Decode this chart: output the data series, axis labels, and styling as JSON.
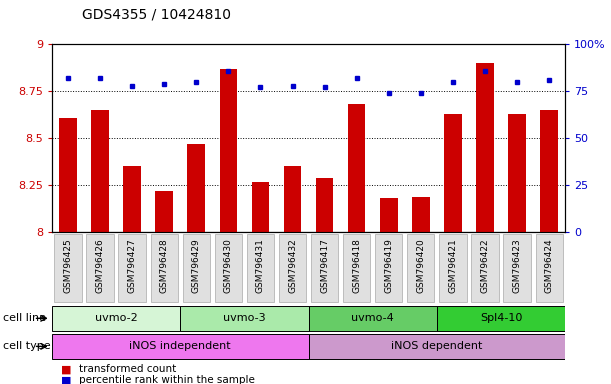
{
  "title": "GDS4355 / 10424810",
  "samples": [
    "GSM796425",
    "GSM796426",
    "GSM796427",
    "GSM796428",
    "GSM796429",
    "GSM796430",
    "GSM796431",
    "GSM796432",
    "GSM796417",
    "GSM796418",
    "GSM796419",
    "GSM796420",
    "GSM796421",
    "GSM796422",
    "GSM796423",
    "GSM796424"
  ],
  "transformed_count": [
    8.61,
    8.65,
    8.35,
    8.22,
    8.47,
    8.87,
    8.27,
    8.35,
    8.29,
    8.68,
    8.18,
    8.19,
    8.63,
    8.9,
    8.63,
    8.65
  ],
  "percentile_rank": [
    82,
    82,
    78,
    79,
    80,
    86,
    77,
    78,
    77,
    82,
    74,
    74,
    80,
    86,
    80,
    81
  ],
  "bar_color": "#cc0000",
  "dot_color": "#0000cc",
  "ylim_left": [
    8.0,
    9.0
  ],
  "ylim_right": [
    0,
    100
  ],
  "yticks_left": [
    8.0,
    8.25,
    8.5,
    8.75,
    9.0
  ],
  "yticks_right": [
    0,
    25,
    50,
    75,
    100
  ],
  "ytick_labels_left": [
    "8",
    "8.25",
    "8.5",
    "8.75",
    "9"
  ],
  "ytick_labels_right": [
    "0",
    "25",
    "50",
    "75",
    "100%"
  ],
  "left_tick_color": "#cc0000",
  "right_tick_color": "#0000cc",
  "grid_lines": [
    8.25,
    8.5,
    8.75
  ],
  "cell_line_groups": [
    {
      "label": "uvmo-2",
      "start": 0,
      "end": 3,
      "color": "#d6f5d6"
    },
    {
      "label": "uvmo-3",
      "start": 4,
      "end": 7,
      "color": "#aaeaaa"
    },
    {
      "label": "uvmo-4",
      "start": 8,
      "end": 11,
      "color": "#66cc66"
    },
    {
      "label": "Spl4-10",
      "start": 12,
      "end": 15,
      "color": "#33cc33"
    }
  ],
  "cell_type_groups": [
    {
      "label": "iNOS independent",
      "start": 0,
      "end": 7,
      "color": "#ee77ee"
    },
    {
      "label": "iNOS dependent",
      "start": 8,
      "end": 15,
      "color": "#cc99cc"
    }
  ],
  "cell_line_label": "cell line",
  "cell_type_label": "cell type",
  "legend_items": [
    {
      "color": "#cc0000",
      "label": "transformed count"
    },
    {
      "color": "#0000cc",
      "label": "percentile rank within the sample"
    }
  ],
  "background_color": "#ffffff",
  "xtick_bg": "#e0e0e0"
}
